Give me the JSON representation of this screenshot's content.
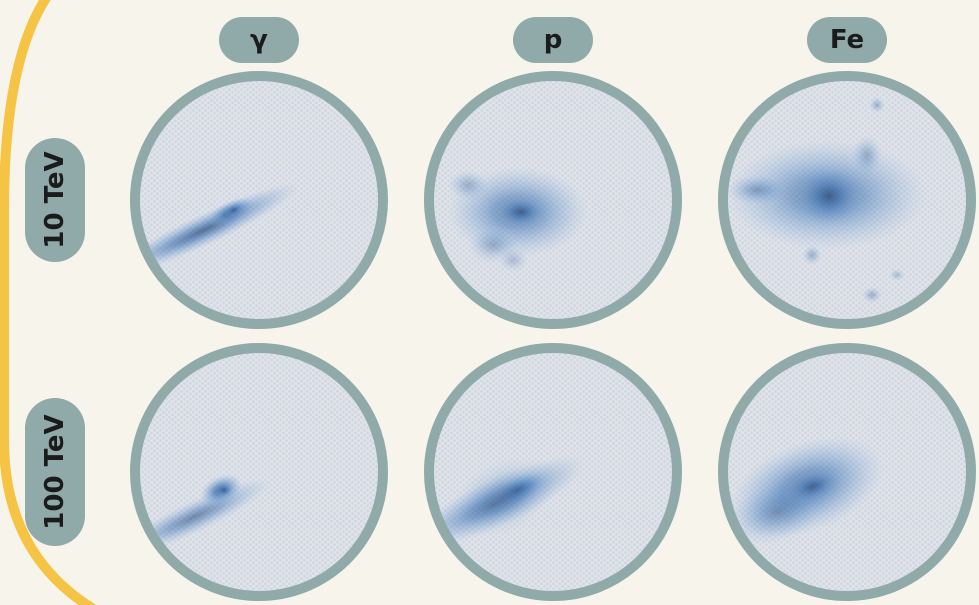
{
  "columns": [
    "γ",
    "p",
    "Fe"
  ],
  "rows": [
    "10 TeV",
    "100 TeV"
  ]
}
